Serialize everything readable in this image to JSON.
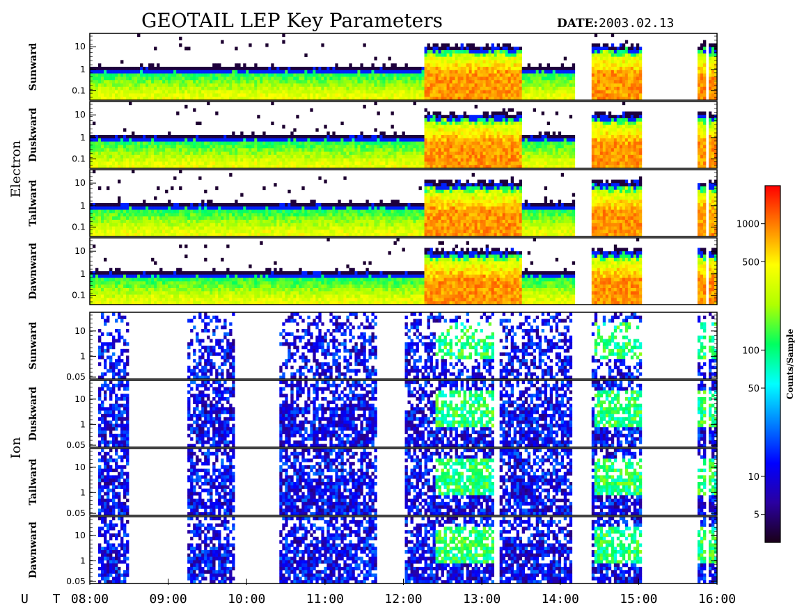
{
  "chart_data": {
    "type": "heatmap",
    "title": "GEOTAIL LEP Key Parameters",
    "date_label": "DATE:",
    "date": "2003.02.13",
    "x_axis": {
      "label": "U T",
      "ticks": [
        "08:00",
        "09:00",
        "10:00",
        "11:00",
        "12:00",
        "13:00",
        "14:00",
        "15:00",
        "16:00"
      ],
      "range": [
        "08:00",
        "16:00"
      ]
    },
    "data_gaps_ut": [
      [
        "14:12",
        "14:23"
      ],
      [
        "15:02",
        "15:45"
      ],
      [
        "15:51",
        "15:53"
      ]
    ],
    "groups": [
      {
        "name": "Electron",
        "panels": [
          {
            "label": "Sunward",
            "yticks": [
              "10",
              "1",
              "0.1"
            ],
            "yscale": "log",
            "yrange": [
              0.05,
              20
            ]
          },
          {
            "label": "Duskward",
            "yticks": [
              "10",
              "1",
              "0.1"
            ],
            "yscale": "log",
            "yrange": [
              0.05,
              20
            ]
          },
          {
            "label": "Tailward",
            "yticks": [
              "10",
              "1",
              "0.1"
            ],
            "yscale": "log",
            "yrange": [
              0.05,
              20
            ]
          },
          {
            "label": "Dawnward",
            "yticks": [
              "10",
              "1",
              "0.1"
            ],
            "yscale": "log",
            "yrange": [
              0.05,
              20
            ]
          }
        ]
      },
      {
        "name": "Ion",
        "panels": [
          {
            "label": "Sunward",
            "yticks": [
              "10",
              "1",
              "0.05"
            ],
            "yscale": "log",
            "yrange": [
              0.05,
              30
            ]
          },
          {
            "label": "Duskward",
            "yticks": [
              "10",
              "1",
              "0.05"
            ],
            "yscale": "log",
            "yrange": [
              0.05,
              30
            ]
          },
          {
            "label": "Tailward",
            "yticks": [
              "10",
              "1",
              "0.05"
            ],
            "yscale": "log",
            "yrange": [
              0.05,
              30
            ]
          },
          {
            "label": "Dawnward",
            "yticks": [
              "10",
              "1",
              "0.05"
            ],
            "yscale": "log",
            "yrange": [
              0.05,
              30
            ]
          }
        ]
      }
    ],
    "colorbar": {
      "label": "Counts/Sample",
      "scale": "log",
      "range": [
        3,
        2000
      ],
      "ticks": [
        {
          "label": "1000",
          "value": 1000
        },
        {
          "label": "500",
          "value": 500
        },
        {
          "label": "100",
          "value": 100
        },
        {
          "label": "50",
          "value": 50
        },
        {
          "label": "10",
          "value": 10
        },
        {
          "label": "5",
          "value": 5
        }
      ],
      "colors": [
        "#1a0018",
        "#2a00a0",
        "#0000ff",
        "#0080ff",
        "#00ffff",
        "#00ff60",
        "#b0ff00",
        "#ffff00",
        "#ff8000",
        "#ff0000"
      ]
    }
  }
}
